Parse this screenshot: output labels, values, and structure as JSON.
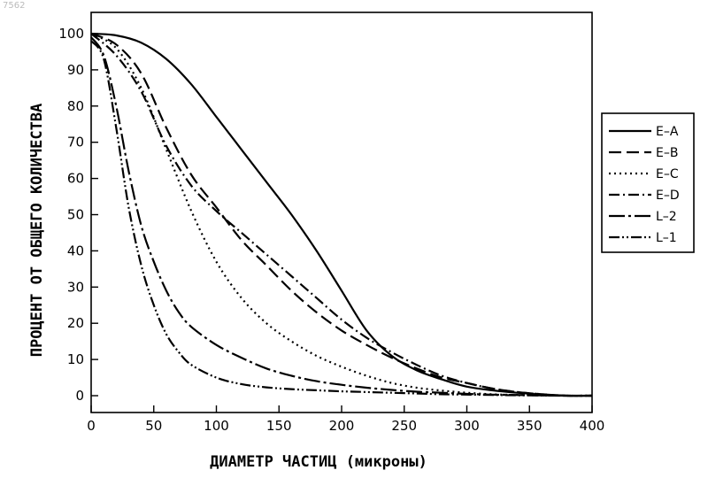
{
  "figure_id": "7562",
  "chart_data": {
    "type": "line",
    "title": "",
    "xlabel": "ДИАМЕТР ЧАСТИЦ (микроны)",
    "ylabel": "ПРОЦЕНТ ОТ ОБЩЕГО КОЛИЧЕСТВА",
    "xlim": [
      0,
      400
    ],
    "ylim": [
      0,
      100
    ],
    "xticks": [
      0,
      50,
      100,
      150,
      200,
      250,
      300,
      350,
      400
    ],
    "yticks": [
      0,
      10,
      20,
      30,
      40,
      50,
      60,
      70,
      80,
      90,
      100
    ],
    "grid": false,
    "legend_position": "right",
    "series": [
      {
        "name": "E–A",
        "dash": "solid",
        "x": [
          0,
          20,
          40,
          60,
          80,
          100,
          120,
          140,
          160,
          180,
          200,
          220,
          240,
          260,
          280,
          300,
          320,
          340,
          360,
          380,
          400
        ],
        "y": [
          100,
          99.5,
          97.5,
          93,
          86,
          77,
          68,
          59,
          50,
          40,
          29,
          18,
          11,
          7,
          4.5,
          2.5,
          1.5,
          0.8,
          0.3,
          0,
          0
        ]
      },
      {
        "name": "E–B",
        "dash": "longdash",
        "x": [
          0,
          20,
          40,
          60,
          80,
          100,
          120,
          140,
          160,
          180,
          200,
          220,
          240,
          260,
          280,
          300,
          320,
          340,
          360,
          380,
          400
        ],
        "y": [
          100,
          97,
          89,
          74,
          61,
          52,
          43,
          36,
          29,
          23,
          18,
          14,
          10.5,
          7.5,
          5,
          3.5,
          2,
          1,
          0.4,
          0,
          0
        ]
      },
      {
        "name": "E–C",
        "dash": "dotted",
        "x": [
          0,
          20,
          40,
          60,
          80,
          100,
          120,
          140,
          160,
          180,
          200,
          220,
          240,
          260,
          280,
          300,
          320,
          340,
          360,
          380,
          400
        ],
        "y": [
          100,
          96,
          85,
          68,
          51,
          37,
          27,
          20,
          15,
          11,
          8,
          5.5,
          3.5,
          2.2,
          1.4,
          0.8,
          0.4,
          0.2,
          0.1,
          0,
          0
        ]
      },
      {
        "name": "E–D",
        "dash": "dashdot",
        "x": [
          0,
          20,
          40,
          60,
          80,
          100,
          120,
          140,
          160,
          180,
          200,
          220,
          240,
          260,
          280,
          300,
          320,
          340,
          360,
          380,
          400
        ],
        "y": [
          100,
          94,
          84,
          69,
          58,
          51,
          45,
          39,
          33,
          27,
          21,
          16,
          12,
          8.5,
          5.5,
          3.5,
          2,
          1,
          0.4,
          0,
          0
        ]
      },
      {
        "name": "L–2",
        "dash": "longdashdot",
        "x": [
          0,
          10,
          20,
          30,
          40,
          50,
          60,
          70,
          80,
          100,
          120,
          140,
          160,
          180,
          200,
          220,
          240,
          260,
          280,
          300,
          320,
          340,
          360,
          380,
          400
        ],
        "y": [
          99,
          94,
          80,
          62,
          47,
          37,
          29,
          23,
          19,
          14,
          10.5,
          7.5,
          5.5,
          4,
          3,
          2.2,
          1.6,
          1.1,
          0.8,
          0.5,
          0.3,
          0.2,
          0.1,
          0,
          0
        ]
      },
      {
        "name": "L–1",
        "dash": "dashdotdot",
        "x": [
          0,
          10,
          20,
          30,
          40,
          50,
          60,
          70,
          80,
          100,
          120,
          140,
          160,
          180,
          200,
          220,
          240,
          260,
          280,
          300,
          320,
          340,
          360,
          380,
          400
        ],
        "y": [
          98,
          93,
          74,
          52,
          36,
          25,
          17,
          12,
          8.5,
          5,
          3.2,
          2.3,
          1.8,
          1.5,
          1.2,
          1,
          0.8,
          0.6,
          0.4,
          0.3,
          0.2,
          0.1,
          0.05,
          0,
          0
        ]
      }
    ]
  }
}
